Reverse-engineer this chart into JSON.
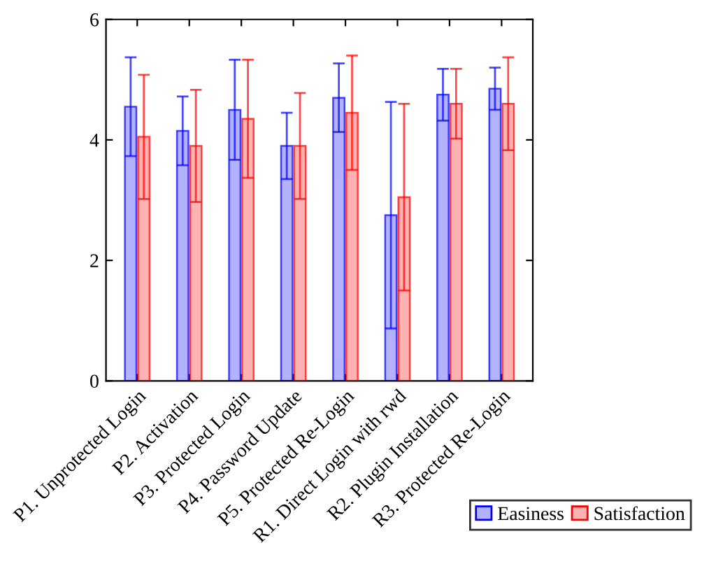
{
  "chart_data": {
    "type": "bar",
    "categories": [
      "P1. Unprotected Login",
      "P2. Activation",
      "P3. Protected Login",
      "P4. Password Update",
      "P5. Protected Re-Login",
      "R1. Direct Login with rwd",
      "R2. Plugin Installation",
      "R3. Protected Re-Login"
    ],
    "series": [
      {
        "name": "Easiness",
        "color": "#0000ff",
        "values": [
          4.55,
          4.15,
          4.5,
          3.9,
          4.7,
          2.75,
          4.75,
          4.85
        ],
        "errors": [
          0.82,
          0.57,
          0.83,
          0.55,
          0.57,
          1.88,
          0.43,
          0.35
        ]
      },
      {
        "name": "Satisfaction",
        "color": "#ff0000",
        "values": [
          4.05,
          3.9,
          4.35,
          3.9,
          4.45,
          3.05,
          4.6,
          4.6
        ],
        "errors": [
          1.03,
          0.93,
          0.98,
          0.88,
          0.95,
          1.55,
          0.58,
          0.77
        ]
      }
    ],
    "ylim": [
      0,
      6
    ],
    "yticks": [
      0,
      2,
      4,
      6
    ],
    "grid": false,
    "legend": "bottom right"
  }
}
